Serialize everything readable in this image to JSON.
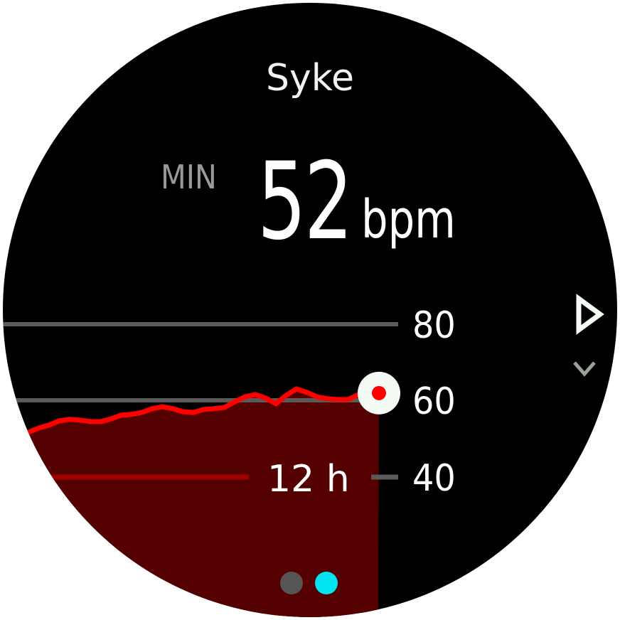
{
  "header": {
    "title": "Syke"
  },
  "summary": {
    "label": "MIN",
    "value": "52",
    "unit": "bpm"
  },
  "navigation": {
    "next_icon": "triangle-right-icon",
    "scroll_icon": "chevron-down-icon"
  },
  "page_indicator": {
    "pages": 2,
    "active": 2,
    "colors": {
      "inactive": "#555555",
      "active": "#00e5f0"
    }
  },
  "colors": {
    "line": "#ff0000",
    "fill": "#550000",
    "grid": "#5a5a5a",
    "baseline": "#a00000"
  },
  "chart_data": {
    "type": "area",
    "title": "",
    "xlabel": "",
    "ylabel": "",
    "span_label": "12 h",
    "y_ticks": [
      "80",
      "60",
      "40"
    ],
    "ylim": [
      40,
      80
    ],
    "grid": true,
    "values": [
      51.6,
      52.7,
      53.5,
      54.6,
      55,
      54.8,
      54.4,
      54.4,
      55.1,
      56.1,
      56.3,
      56.8,
      57.8,
      58.3,
      57.8,
      57,
      56.8,
      57.6,
      57.8,
      58.1,
      59.6,
      60.9,
      61.5,
      60.6,
      59.1,
      61.3,
      63,
      62.1,
      60.9,
      60.4,
      60.2,
      60.2,
      61.5,
      61.9,
      61.9
    ]
  }
}
